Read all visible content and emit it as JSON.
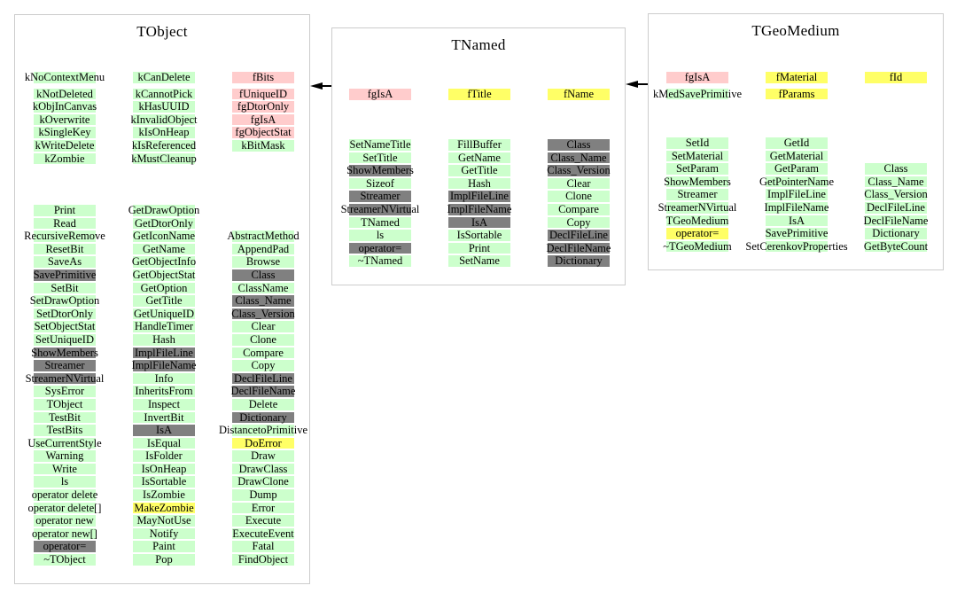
{
  "diagram": {
    "colors": {
      "green": "#ccffcc",
      "pink": "#ffcccc",
      "yellow": "#ffff66",
      "gray": "#808080",
      "border": "#cccccc",
      "arrow": "#000000"
    },
    "arrows": [
      {
        "from": "TNamed",
        "to": "TObject"
      },
      {
        "from": "TGeoMedium",
        "to": "TNamed"
      }
    ],
    "tobject": {
      "title": "TObject",
      "enums1": [
        {
          "t": "kNoContextMenu"
        },
        {
          "t": "kNotDeleted"
        },
        {
          "t": "kObjInCanvas"
        },
        {
          "t": "kOverwrite"
        },
        {
          "t": "kSingleKey"
        },
        {
          "t": "kWriteDelete"
        },
        {
          "t": "kZombie"
        }
      ],
      "enums2": [
        {
          "t": "kCanDelete"
        },
        {
          "t": "kCannotPick"
        },
        {
          "t": "kHasUUID"
        },
        {
          "t": "kInvalidObject"
        },
        {
          "t": "kIsOnHeap"
        },
        {
          "t": "kIsReferenced"
        },
        {
          "t": "kMustCleanup"
        }
      ],
      "enums3": [
        {
          "t": "fBits",
          "c": "pink"
        },
        {
          "t": "fUniqueID",
          "c": "pink"
        },
        {
          "t": "fgDtorOnly",
          "c": "pink"
        },
        {
          "t": "fgIsA",
          "c": "pink"
        },
        {
          "t": "fgObjectStat",
          "c": "pink"
        },
        {
          "t": "kBitMask"
        }
      ],
      "methods1": [
        {
          "t": "Print"
        },
        {
          "t": "Read"
        },
        {
          "t": "RecursiveRemove"
        },
        {
          "t": "ResetBit"
        },
        {
          "t": "SaveAs"
        },
        {
          "t": "SavePrimitive",
          "c": "gray"
        },
        {
          "t": "SetBit"
        },
        {
          "t": "SetDrawOption"
        },
        {
          "t": "SetDtorOnly"
        },
        {
          "t": "SetObjectStat"
        },
        {
          "t": "SetUniqueID"
        },
        {
          "t": "ShowMembers",
          "c": "gray"
        },
        {
          "t": "Streamer",
          "c": "gray"
        },
        {
          "t": "StreamerNVirtual",
          "c": "gray"
        },
        {
          "t": "SysError"
        },
        {
          "t": "TObject"
        },
        {
          "t": "TestBit"
        },
        {
          "t": "TestBits"
        },
        {
          "t": "UseCurrentStyle"
        },
        {
          "t": "Warning"
        },
        {
          "t": "Write"
        },
        {
          "t": "ls"
        },
        {
          "t": "operator delete"
        },
        {
          "t": "operator delete[]"
        },
        {
          "t": "operator new"
        },
        {
          "t": "operator new[]"
        },
        {
          "t": "operator=",
          "c": "gray"
        },
        {
          "t": "~TObject"
        }
      ],
      "methods2": [
        {
          "t": "GetDrawOption"
        },
        {
          "t": "GetDtorOnly"
        },
        {
          "t": "GetIconName"
        },
        {
          "t": "GetName"
        },
        {
          "t": "GetObjectInfo"
        },
        {
          "t": "GetObjectStat"
        },
        {
          "t": "GetOption"
        },
        {
          "t": "GetTitle"
        },
        {
          "t": "GetUniqueID"
        },
        {
          "t": "HandleTimer"
        },
        {
          "t": "Hash"
        },
        {
          "t": "ImplFileLine",
          "c": "gray"
        },
        {
          "t": "ImplFileName",
          "c": "gray"
        },
        {
          "t": "Info"
        },
        {
          "t": "InheritsFrom"
        },
        {
          "t": "Inspect"
        },
        {
          "t": "InvertBit"
        },
        {
          "t": "IsA",
          "c": "gray"
        },
        {
          "t": "IsEqual"
        },
        {
          "t": "IsFolder"
        },
        {
          "t": "IsOnHeap"
        },
        {
          "t": "IsSortable"
        },
        {
          "t": "IsZombie"
        },
        {
          "t": "MakeZombie",
          "c": "yellow"
        },
        {
          "t": "MayNotUse"
        },
        {
          "t": "Notify"
        },
        {
          "t": "Paint"
        },
        {
          "t": "Pop"
        }
      ],
      "methods3": [
        {
          "t": "AbstractMethod"
        },
        {
          "t": "AppendPad"
        },
        {
          "t": "Browse"
        },
        {
          "t": "Class",
          "c": "gray"
        },
        {
          "t": "ClassName"
        },
        {
          "t": "Class_Name",
          "c": "gray"
        },
        {
          "t": "Class_Version",
          "c": "gray"
        },
        {
          "t": "Clear"
        },
        {
          "t": "Clone"
        },
        {
          "t": "Compare"
        },
        {
          "t": "Copy"
        },
        {
          "t": "DeclFileLine",
          "c": "gray"
        },
        {
          "t": "DeclFileName",
          "c": "gray"
        },
        {
          "t": "Delete"
        },
        {
          "t": "Dictionary",
          "c": "gray"
        },
        {
          "t": "DistancetoPrimitive"
        },
        {
          "t": "DoError",
          "c": "yellow"
        },
        {
          "t": "Draw"
        },
        {
          "t": "DrawClass"
        },
        {
          "t": "DrawClone"
        },
        {
          "t": "Dump"
        },
        {
          "t": "Error"
        },
        {
          "t": "Execute"
        },
        {
          "t": "ExecuteEvent"
        },
        {
          "t": "Fatal"
        },
        {
          "t": "FindObject"
        }
      ]
    },
    "tnamed": {
      "title": "TNamed",
      "data1": [
        {
          "t": "fgIsA",
          "c": "pink"
        }
      ],
      "data2": [
        {
          "t": "fTitle",
          "c": "yellow"
        }
      ],
      "data3": [
        {
          "t": "fName",
          "c": "yellow"
        }
      ],
      "methods1": [
        {
          "t": "SetNameTitle"
        },
        {
          "t": "SetTitle"
        },
        {
          "t": "ShowMembers",
          "c": "gray"
        },
        {
          "t": "Sizeof"
        },
        {
          "t": "Streamer",
          "c": "gray"
        },
        {
          "t": "StreamerNVirtual",
          "c": "gray"
        },
        {
          "t": "TNamed"
        },
        {
          "t": "ls"
        },
        {
          "t": "operator=",
          "c": "gray"
        },
        {
          "t": "~TNamed"
        }
      ],
      "methods2": [
        {
          "t": "FillBuffer"
        },
        {
          "t": "GetName"
        },
        {
          "t": "GetTitle"
        },
        {
          "t": "Hash"
        },
        {
          "t": "ImplFileLine",
          "c": "gray"
        },
        {
          "t": "ImplFileName",
          "c": "gray"
        },
        {
          "t": "IsA",
          "c": "gray"
        },
        {
          "t": "IsSortable"
        },
        {
          "t": "Print"
        },
        {
          "t": "SetName"
        }
      ],
      "methods3": [
        {
          "t": "Class",
          "c": "gray"
        },
        {
          "t": "Class_Name",
          "c": "gray"
        },
        {
          "t": "Class_Version",
          "c": "gray"
        },
        {
          "t": "Clear"
        },
        {
          "t": "Clone"
        },
        {
          "t": "Compare"
        },
        {
          "t": "Copy"
        },
        {
          "t": "DeclFileLine",
          "c": "gray"
        },
        {
          "t": "DeclFileName",
          "c": "gray"
        },
        {
          "t": "Dictionary",
          "c": "gray"
        }
      ]
    },
    "tgeomedium": {
      "title": "TGeoMedium",
      "data1": [
        {
          "t": "fgIsA",
          "c": "pink"
        },
        {
          "t": "kMedSavePrimitive"
        }
      ],
      "data2": [
        {
          "t": "fMaterial",
          "c": "yellow"
        },
        {
          "t": "fParams",
          "c": "yellow"
        }
      ],
      "data3": [
        {
          "t": "fId",
          "c": "yellow"
        }
      ],
      "methods1": [
        {
          "t": "SetId"
        },
        {
          "t": "SetMaterial"
        },
        {
          "t": "SetParam"
        },
        {
          "t": "ShowMembers"
        },
        {
          "t": "Streamer"
        },
        {
          "t": "StreamerNVirtual"
        },
        {
          "t": "TGeoMedium"
        },
        {
          "t": "operator=",
          "c": "yellow"
        },
        {
          "t": "~TGeoMedium"
        }
      ],
      "methods2": [
        {
          "t": "GetId"
        },
        {
          "t": "GetMaterial"
        },
        {
          "t": "GetParam"
        },
        {
          "t": "GetPointerName"
        },
        {
          "t": "ImplFileLine"
        },
        {
          "t": "ImplFileName"
        },
        {
          "t": "IsA"
        },
        {
          "t": "SavePrimitive"
        },
        {
          "t": "SetCerenkovProperties"
        }
      ],
      "methods3": [
        {
          "t": "Class"
        },
        {
          "t": "Class_Name"
        },
        {
          "t": "Class_Version"
        },
        {
          "t": "DeclFileLine"
        },
        {
          "t": "DeclFileName"
        },
        {
          "t": "Dictionary"
        },
        {
          "t": "GetByteCount"
        }
      ]
    }
  }
}
